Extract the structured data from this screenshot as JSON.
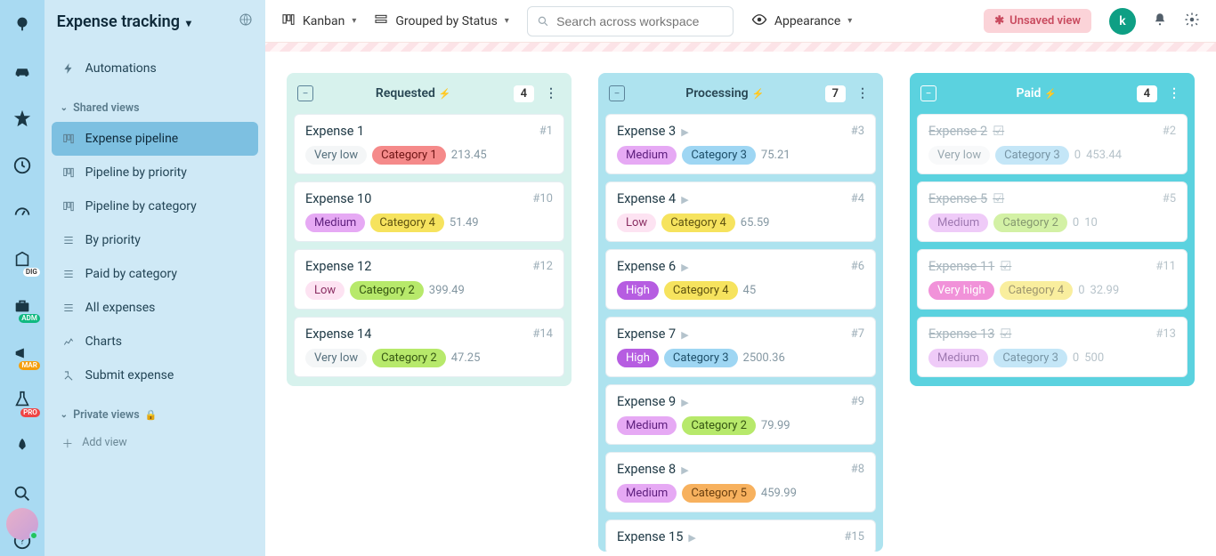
{
  "workspace_title": "Expense tracking",
  "topbar": {
    "view_type": "Kanban",
    "grouped_by": "Grouped by Status",
    "appearance": "Appearance",
    "unsaved_view": "Unsaved view",
    "search_placeholder": "Search across workspace",
    "avatar_letter": "k"
  },
  "sidebar": {
    "automations": "Automations",
    "shared_heading": "Shared views",
    "private_heading": "Private views",
    "add_view": "Add view",
    "items": [
      {
        "label": "Expense pipeline",
        "active": true
      },
      {
        "label": "Pipeline by priority",
        "active": false
      },
      {
        "label": "Pipeline by category",
        "active": false
      },
      {
        "label": "By priority",
        "active": false
      },
      {
        "label": "Paid by category",
        "active": false
      },
      {
        "label": "All expenses",
        "active": false
      },
      {
        "label": "Charts",
        "active": false
      },
      {
        "label": "Submit expense",
        "active": false
      }
    ]
  },
  "rail_badges": {
    "dig": "DIG",
    "adm": "ADM",
    "mar": "MAR",
    "pro": "PRO"
  },
  "priority_colors": {
    "Very low": {
      "bg": "#f4f6f7",
      "fg": "#56707d"
    },
    "Low": {
      "bg": "#fde3f2",
      "fg": "#8a2e62"
    },
    "Medium": {
      "bg": "#e6a9f4",
      "fg": "#5d1e7d"
    },
    "High": {
      "bg": "#b65de1",
      "fg": "#ffffff"
    },
    "Very high": {
      "bg": "#e84bc0",
      "fg": "#ffffff"
    }
  },
  "category_colors": {
    "Category 1": {
      "bg": "#f58a8a",
      "fg": "#6e1414"
    },
    "Category 2": {
      "bg": "#b7e96b",
      "fg": "#355512"
    },
    "Category 3": {
      "bg": "#9ed6f3",
      "fg": "#1d4e68"
    },
    "Category 4": {
      "bg": "#f6e35e",
      "fg": "#5e5210"
    },
    "Category 5": {
      "bg": "#f7b15e",
      "fg": "#6a3f0f"
    }
  },
  "columns": [
    {
      "key": "requested",
      "title": "Requested",
      "count": "4",
      "state": "open",
      "cards": [
        {
          "title": "Expense 1",
          "id": "#1",
          "priority": "Very low",
          "category": "Category 1",
          "amount": "213.45"
        },
        {
          "title": "Expense 10",
          "id": "#10",
          "priority": "Medium",
          "category": "Category 4",
          "amount": "51.49"
        },
        {
          "title": "Expense 12",
          "id": "#12",
          "priority": "Low",
          "category": "Category 2",
          "amount": "399.49"
        },
        {
          "title": "Expense 14",
          "id": "#14",
          "priority": "Very low",
          "category": "Category 2",
          "amount": "47.25"
        }
      ]
    },
    {
      "key": "processing",
      "title": "Processing",
      "count": "7",
      "state": "in_progress",
      "cards": [
        {
          "title": "Expense 3",
          "id": "#3",
          "priority": "Medium",
          "category": "Category 3",
          "amount": "75.21"
        },
        {
          "title": "Expense 4",
          "id": "#4",
          "priority": "Low",
          "category": "Category 4",
          "amount": "65.59"
        },
        {
          "title": "Expense 6",
          "id": "#6",
          "priority": "High",
          "category": "Category 4",
          "amount": "45"
        },
        {
          "title": "Expense 7",
          "id": "#7",
          "priority": "High",
          "category": "Category 3",
          "amount": "2500.36"
        },
        {
          "title": "Expense 9",
          "id": "#9",
          "priority": "Medium",
          "category": "Category 2",
          "amount": "79.99"
        },
        {
          "title": "Expense 8",
          "id": "#8",
          "priority": "Medium",
          "category": "Category 5",
          "amount": "459.99"
        },
        {
          "title": "Expense 15",
          "id": "#15",
          "priority": null,
          "category": null,
          "amount": null
        }
      ]
    },
    {
      "key": "paid",
      "title": "Paid",
      "count": "4",
      "state": "done",
      "cards": [
        {
          "title": "Expense 2",
          "id": "#2",
          "priority": "Very low",
          "category": "Category 3",
          "extra": "0",
          "amount": "453.44"
        },
        {
          "title": "Expense 5",
          "id": "#5",
          "priority": "Medium",
          "category": "Category 2",
          "extra": "0",
          "amount": "10"
        },
        {
          "title": "Expense 11",
          "id": "#11",
          "priority": "Very high",
          "category": "Category 4",
          "extra": "0",
          "amount": "32.99"
        },
        {
          "title": "Expense 13",
          "id": "#13",
          "priority": "Medium",
          "category": "Category 3",
          "extra": "0",
          "amount": "500"
        }
      ]
    }
  ]
}
